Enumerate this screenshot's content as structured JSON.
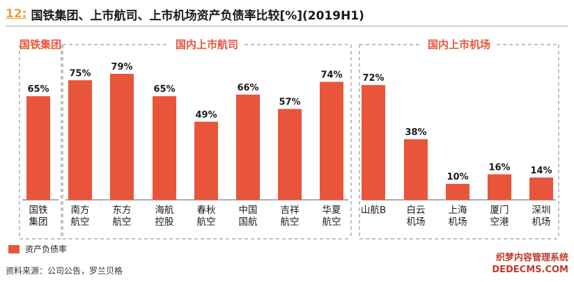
{
  "title": {
    "number": "12:",
    "text": "国铁集团、上市航司、上市机场资产负债率比较[%](2019H1)"
  },
  "colors": {
    "bar": "#e8553a",
    "group_label": "#e8553a",
    "frame": "#9a9a9a"
  },
  "groups": [
    {
      "label": "国铁集团"
    },
    {
      "label": "国内上市航司"
    },
    {
      "label": "国内上市机场"
    }
  ],
  "chart_data": {
    "type": "bar",
    "title": "国铁集团、上市航司、上市机场资产负债率比较[%](2019H1)",
    "categories": [
      "国铁\n集团",
      "南方\n航空",
      "东方\n航空",
      "海航\n控股",
      "春秋\n航空",
      "中国\n国航",
      "吉祥\n航空",
      "华夏\n航空",
      "山航B",
      "白云\n机场",
      "上海\n机场",
      "厦门\n空港",
      "深圳\n机场"
    ],
    "values": [
      65,
      75,
      79,
      65,
      49,
      66,
      57,
      74,
      72,
      38,
      10,
      16,
      14
    ],
    "value_labels": [
      "65%",
      "75%",
      "79%",
      "65%",
      "49%",
      "66%",
      "57%",
      "74%",
      "72%",
      "38%",
      "10%",
      "16%",
      "14%"
    ],
    "group_of_category": [
      0,
      1,
      1,
      1,
      1,
      1,
      1,
      1,
      2,
      2,
      2,
      2,
      2
    ],
    "series": [
      {
        "name": "资产负债率",
        "values": [
          65,
          75,
          79,
          65,
          49,
          66,
          57,
          74,
          72,
          38,
          10,
          16,
          14
        ]
      }
    ],
    "ylim": [
      0,
      100
    ],
    "grid": false,
    "legend_position": "bottom-left"
  },
  "legend": {
    "label": "资产负债率"
  },
  "source": "资料来源：公司公告，罗兰贝格",
  "watermark": {
    "line1": "织梦内容管理系统",
    "line2": "DEDECMS.COM"
  }
}
